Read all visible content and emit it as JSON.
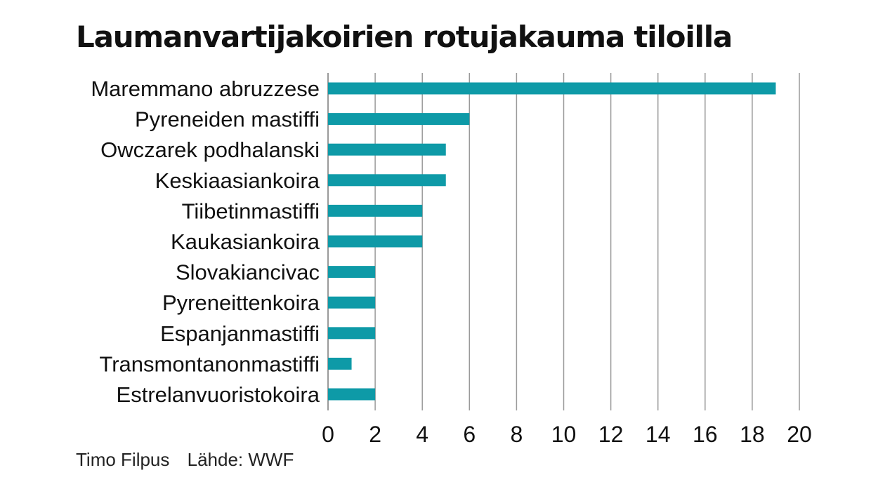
{
  "chart_data": {
    "type": "bar",
    "orientation": "horizontal",
    "title": "Laumanvartijakoirien rotujakauma tiloilla",
    "categories": [
      "Maremmano abruzzese",
      "Pyreneiden mastiffi",
      "Owczarek podhalanski",
      "Keskiaasiankoira",
      "Tiibetinmastiffi",
      "Kaukasiankoira",
      "Slovakiancivac",
      "Pyreneittenkoira",
      "Espanjanmastiffi",
      "Transmontanonmastiffi",
      "Estrelanvuoristokoira"
    ],
    "values": [
      19,
      6,
      5,
      5,
      4,
      4,
      2,
      2,
      2,
      1,
      2
    ],
    "xlim": [
      0,
      20
    ],
    "xticks": [
      "0",
      "2",
      "4",
      "6",
      "8",
      "10",
      "12",
      "14",
      "16",
      "18",
      "20"
    ],
    "grid": "vertical",
    "bar_color": "#0e9aa7",
    "grid_color": "#9a9a9a"
  },
  "footer": {
    "author": "Timo Filpus",
    "source": "Lähde: WWF"
  }
}
